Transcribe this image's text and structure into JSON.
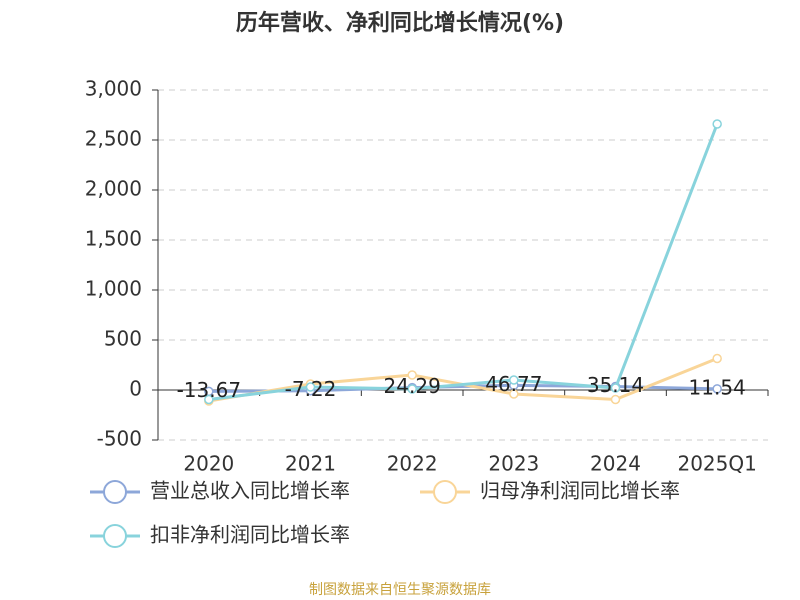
{
  "chart_data": {
    "type": "line",
    "title": "历年营收、净利同比增长情况(%)",
    "categories": [
      "2020",
      "2021",
      "2022",
      "2023",
      "2024",
      "2025Q1"
    ],
    "series": [
      {
        "name": "营业总收入同比增长率",
        "color": "#8da7d9",
        "values": [
          -13.67,
          -7.22,
          24.29,
          46.77,
          35.14,
          11.54
        ],
        "show_labels": true
      },
      {
        "name": "归母净利润同比增长率",
        "color": "#f9d598",
        "values": [
          -110,
          60,
          150,
          -40,
          -95,
          315
        ],
        "show_labels": false
      },
      {
        "name": "扣非净利润同比增长率",
        "color": "#88d3dc",
        "values": [
          -95,
          30,
          10,
          100,
          20,
          2660
        ],
        "show_labels": false
      }
    ],
    "ylim": [
      -500,
      3000
    ],
    "yticks": [
      -500,
      0,
      500,
      {
        "value": 1000,
        "label": "1,000"
      },
      {
        "value": 1500,
        "label": "1,500"
      },
      {
        "value": 2000,
        "label": "2,000"
      },
      {
        "value": 2500,
        "label": "2,500"
      },
      {
        "value": 3000,
        "label": "3,000"
      }
    ],
    "grid": true,
    "source": "制图数据来自恒生聚源数据库"
  }
}
